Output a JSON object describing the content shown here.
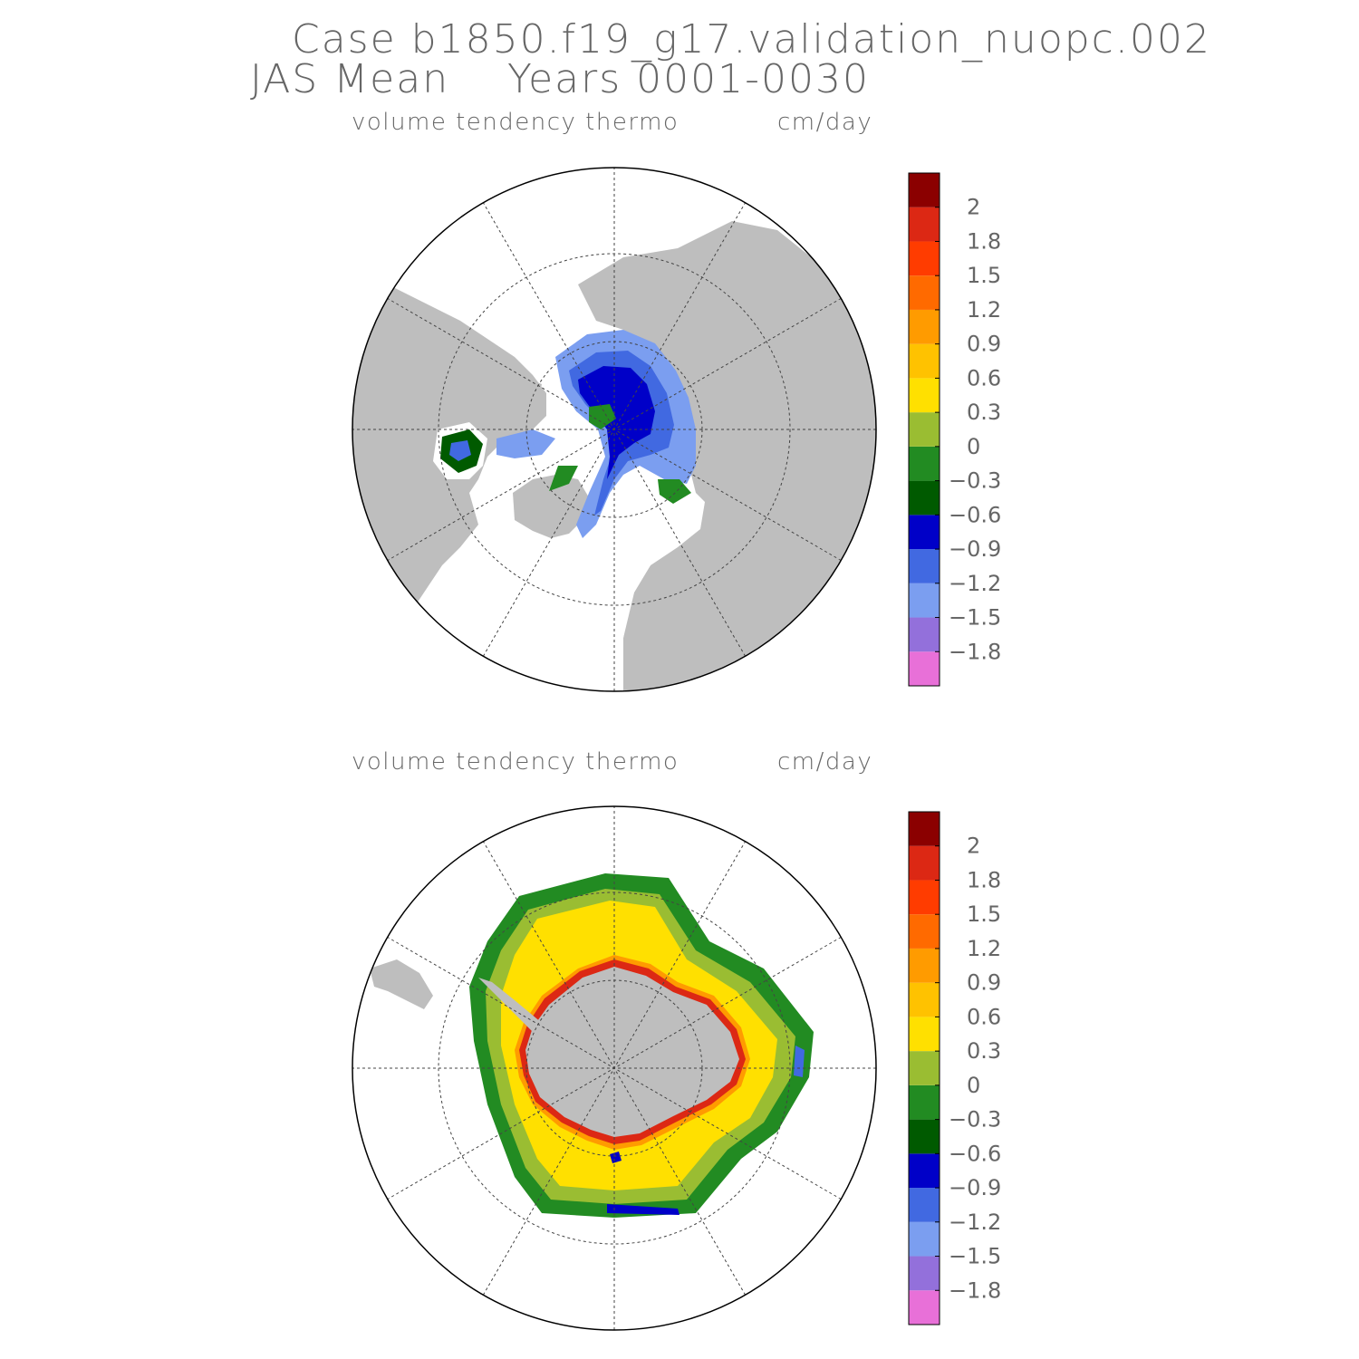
{
  "title": {
    "line1": "Case b1850.f19_g17.validation_nuopc.002",
    "line2": "JAS Mean    Years 0001-0030"
  },
  "panels": [
    {
      "id": "nh",
      "hemisphere": "north",
      "variable": "volume tendency thermo",
      "units": "cm/day"
    },
    {
      "id": "sh",
      "hemisphere": "south",
      "variable": "volume tendency thermo",
      "units": "cm/day"
    }
  ],
  "colorbar": {
    "colors": [
      "#e870d8",
      "#9370db",
      "#7b9ef0",
      "#4169e1",
      "#0000c8",
      "#005a00",
      "#228b22",
      "#9abd32",
      "#ffe000",
      "#ffc200",
      "#ff9b00",
      "#ff6a00",
      "#ff3c00",
      "#dc2814",
      "#8b0000"
    ],
    "labels": [
      "-1.8",
      "-1.5",
      "-1.2",
      "-0.9",
      "-0.6",
      "-0.3",
      "0",
      "0.3",
      "0.6",
      "0.9",
      "1.2",
      "1.5",
      "1.8",
      "2"
    ]
  },
  "colors": {
    "land": "#bebebe",
    "ocean": "#ffffff",
    "outline": "#000000"
  }
}
